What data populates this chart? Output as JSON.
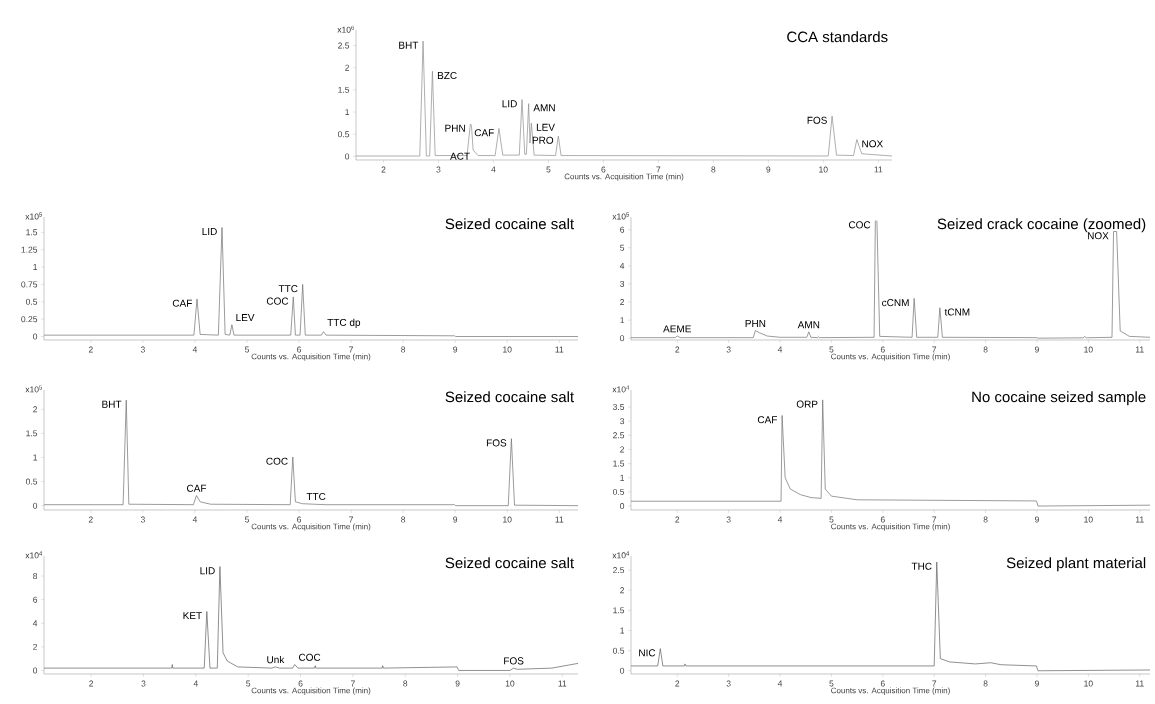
{
  "chart_data": [
    {
      "type": "line",
      "title": "CCA standards",
      "xlabel": "Counts vs. Acquisition Time (min)",
      "ylabel": "x10$^{6}$",
      "color": "#8c8c8c",
      "x": [
        1.5,
        2.66,
        2.72,
        2.78,
        2.84,
        2.89,
        2.94,
        3.52,
        3.58,
        3.6,
        3.63,
        3.66,
        3.72,
        4.03,
        4.1,
        4.17,
        4.47,
        4.52,
        4.57,
        4.6,
        4.64,
        4.665,
        4.69,
        4.74,
        5.13,
        5.18,
        5.23,
        10.09,
        10.16,
        10.24,
        10.55,
        10.61,
        10.7,
        11.25
      ],
      "values": [
        0.01,
        0.01,
        2.6,
        0.01,
        0.01,
        1.92,
        0.02,
        0.02,
        0.73,
        0.7,
        0.15,
        0.1,
        0.02,
        0.02,
        0.63,
        0.03,
        0.03,
        1.28,
        0.05,
        0.05,
        1.19,
        0.3,
        0.75,
        0.03,
        0.02,
        0.46,
        0.02,
        0.01,
        0.91,
        0.03,
        0.02,
        0.38,
        0.06,
        0.01
      ],
      "xlim": [
        1.5,
        11.25
      ],
      "ylim": [
        -0.08,
        2.85
      ],
      "xticks": [
        2,
        3,
        4,
        5,
        6,
        7,
        8,
        9,
        10,
        11
      ],
      "yticks": [
        0,
        0.5,
        1,
        1.5,
        2,
        2.5
      ],
      "annotations": [
        {
          "text": "BHT",
          "x": 2.72,
          "y": 2.6
        },
        {
          "text": "BZC",
          "x": 2.89,
          "y": 1.92
        },
        {
          "text": "PHN",
          "x": 3.58,
          "y": 0.73
        },
        {
          "text": "ACT",
          "x": 3.66,
          "y": 0.1
        },
        {
          "text": "CAF",
          "x": 4.1,
          "y": 0.63
        },
        {
          "text": "LID",
          "x": 4.52,
          "y": 1.28
        },
        {
          "text": "AMN",
          "x": 4.64,
          "y": 1.19
        },
        {
          "text": "LEV",
          "x": 4.69,
          "y": 0.75
        },
        {
          "text": "PRO",
          "x": 5.18,
          "y": 0.46
        },
        {
          "text": "FOS",
          "x": 10.16,
          "y": 0.91
        },
        {
          "text": "NOX",
          "x": 10.61,
          "y": 0.38
        }
      ]
    },
    {
      "type": "line",
      "title": "Seized cocaine salt",
      "xlabel": "Counts vs. Acquisition Time (min)",
      "ylabel": "x10$^{5}$",
      "color": "#707070",
      "x": [
        1.1,
        3.98,
        4.04,
        4.1,
        4.45,
        4.52,
        4.58,
        4.67,
        4.71,
        4.75,
        5.84,
        5.89,
        5.93,
        6.02,
        6.07,
        6.12,
        6.43,
        6.47,
        6.52,
        8.99,
        9.01,
        11.36
      ],
      "values": [
        0.02,
        0.02,
        0.54,
        0.03,
        0.02,
        1.57,
        0.03,
        0.02,
        0.17,
        0.02,
        0.02,
        0.57,
        0.02,
        0.02,
        0.75,
        0.02,
        0.02,
        0.07,
        0.02,
        0.01,
        0,
        0
      ],
      "xlim": [
        1.1,
        11.36
      ],
      "ylim": [
        -0.05,
        1.72
      ],
      "xticks": [
        2,
        3,
        4,
        5,
        6,
        7,
        8,
        9,
        10,
        11
      ],
      "yticks": [
        0,
        0.25,
        0.5,
        0.75,
        1,
        1.25,
        1.5
      ],
      "annotations": [
        {
          "text": "CAF",
          "x": 4.04,
          "y": 0.54
        },
        {
          "text": "LID",
          "x": 4.52,
          "y": 1.57
        },
        {
          "text": "LEV",
          "x": 4.71,
          "y": 0.17
        },
        {
          "text": "COC",
          "x": 5.89,
          "y": 0.57
        },
        {
          "text": "TTC",
          "x": 6.07,
          "y": 0.75
        },
        {
          "text": "TTC dp",
          "x": 6.47,
          "y": 0.07
        }
      ]
    },
    {
      "type": "line",
      "title": "Seized crack cocaine (zoomed)",
      "xlabel": "Counts vs. Acquisition Time (min)",
      "ylabel": "x10$^{5}$",
      "color": "#707070",
      "x": [
        1.1,
        1.96,
        2.0,
        2.06,
        3.48,
        3.52,
        3.6,
        3.75,
        4.0,
        4.52,
        4.56,
        4.6,
        4.73,
        4.75,
        4.77,
        5.83,
        5.855,
        5.87,
        5.885,
        5.94,
        6.57,
        6.61,
        6.66,
        7.07,
        7.11,
        7.16,
        8.99,
        9.02,
        9.9,
        9.93,
        9.96,
        10.46,
        10.49,
        10.55,
        10.62,
        10.8,
        11.2
      ],
      "values": [
        0.03,
        0.03,
        0.12,
        0.03,
        0.03,
        0.42,
        0.3,
        0.12,
        0.05,
        0.05,
        0.35,
        0.05,
        0.03,
        0.08,
        0.03,
        0.05,
        6.5,
        null,
        6.5,
        0.1,
        0.05,
        2.2,
        0.05,
        0.05,
        1.68,
        0.05,
        0.03,
        0.0,
        0.02,
        0.1,
        0.02,
        0.05,
        5.9,
        5.9,
        0.4,
        0.1,
        0.05
      ],
      "xlim": [
        1.1,
        11.2
      ],
      "ylim": [
        -0.1,
        6.7
      ],
      "xticks": [
        2,
        3,
        4,
        5,
        6,
        7,
        8,
        9,
        10,
        11
      ],
      "yticks": [
        0,
        1,
        2,
        3,
        4,
        5,
        6
      ],
      "annotations": [
        {
          "text": "AEME",
          "x": 2.0,
          "y": 0.12
        },
        {
          "text": "PHN",
          "x": 3.52,
          "y": 0.42
        },
        {
          "text": "AMN",
          "x": 4.56,
          "y": 0.35
        },
        {
          "text": "COC",
          "x": 5.855,
          "y": 6.5
        },
        {
          "text": "cCNM",
          "x": 6.61,
          "y": 2.2
        },
        {
          "text": "tCNM",
          "x": 7.11,
          "y": 1.68
        },
        {
          "text": "NOX",
          "x": 10.49,
          "y": 5.9
        }
      ]
    },
    {
      "type": "line",
      "title": "Seized cocaine salt",
      "xlabel": "Counts vs. Acquisition Time (min)",
      "ylabel": "x10$^{5}$",
      "color": "#707070",
      "x": [
        1.1,
        2.62,
        2.68,
        2.73,
        3.97,
        4.03,
        4.1,
        4.3,
        5.83,
        5.88,
        5.93,
        6.07,
        6.5,
        8.99,
        9.01,
        10.02,
        10.08,
        10.14,
        11.36
      ],
      "values": [
        0.02,
        0.02,
        2.19,
        0.03,
        0.02,
        0.21,
        0.08,
        0.03,
        0.02,
        1.01,
        0.08,
        0.04,
        0.02,
        0.02,
        0,
        0,
        1.39,
        0.01,
        0
      ],
      "xlim": [
        1.1,
        11.36
      ],
      "ylim": [
        -0.09,
        2.4
      ],
      "xticks": [
        2,
        3,
        4,
        5,
        6,
        7,
        8,
        9,
        10,
        11
      ],
      "yticks": [
        0,
        0.5,
        1,
        1.5,
        2
      ],
      "annotations": [
        {
          "text": "BHT",
          "x": 2.68,
          "y": 2.19
        },
        {
          "text": "CAF",
          "x": 4.03,
          "y": 0.21
        },
        {
          "text": "COC",
          "x": 5.88,
          "y": 1.01
        },
        {
          "text": "TTC",
          "x": 6.07,
          "y": 0.04
        },
        {
          "text": "FOS",
          "x": 10.08,
          "y": 1.39
        }
      ]
    },
    {
      "type": "line",
      "title": "No cocaine seized sample",
      "xlabel": "Counts vs. Acquisition Time (min)",
      "ylabel": "x10$^{4}$",
      "color": "#707070",
      "x": [
        1.1,
        4.02,
        4.04,
        4.1,
        4.2,
        4.4,
        4.6,
        4.8,
        4.83,
        4.88,
        5.0,
        5.5,
        8.99,
        9.02,
        11.2
      ],
      "values": [
        0.17,
        0.17,
        3.2,
        1.0,
        0.6,
        0.4,
        0.3,
        0.27,
        3.75,
        0.6,
        0.35,
        0.22,
        0.18,
        0.0,
        0.03
      ],
      "xlim": [
        1.1,
        11.2
      ],
      "ylim": [
        -0.14,
        4.1
      ],
      "xticks": [
        2,
        3,
        4,
        5,
        6,
        7,
        8,
        9,
        10,
        11
      ],
      "yticks": [
        0,
        0.5,
        1,
        1.5,
        2,
        2.5,
        3,
        3.5
      ],
      "annotations": [
        {
          "text": "CAF",
          "x": 4.04,
          "y": 3.2
        },
        {
          "text": "ORP",
          "x": 4.83,
          "y": 3.75
        }
      ]
    },
    {
      "type": "line",
      "title": "Seized cocaine salt",
      "xlabel": "Counts vs. Acquisition Time (min)",
      "ylabel": "x10$^{4}$",
      "color": "#606060",
      "x": [
        1.1,
        3.54,
        3.55,
        3.56,
        4.16,
        4.21,
        4.27,
        4.41,
        4.46,
        4.52,
        4.6,
        4.8,
        5.45,
        5.52,
        5.6,
        5.85,
        5.89,
        5.95,
        6.27,
        6.28,
        6.29,
        7.56,
        7.57,
        7.58,
        8.99,
        9.02,
        10.0,
        10.07,
        10.14,
        10.8,
        11.3
      ],
      "values": [
        0.2,
        0.2,
        0.5,
        0.2,
        0.2,
        5.0,
        0.2,
        0.2,
        8.8,
        1.5,
        0.8,
        0.3,
        0.2,
        0.3,
        0.2,
        0.2,
        0.5,
        0.2,
        0.2,
        0.4,
        0.2,
        0.2,
        0.4,
        0.2,
        0.3,
        0,
        0,
        0.2,
        0.1,
        0.2,
        0.6
      ],
      "xlim": [
        1.1,
        11.3
      ],
      "ylim": [
        -0.3,
        9.7
      ],
      "xticks": [
        2,
        3,
        4,
        5,
        6,
        7,
        8,
        9,
        10,
        11
      ],
      "yticks": [
        0,
        2,
        4,
        6,
        8
      ],
      "annotations": [
        {
          "text": "KET",
          "x": 4.21,
          "y": 5.0
        },
        {
          "text": "LID",
          "x": 4.46,
          "y": 8.8
        },
        {
          "text": "Unk",
          "x": 5.52,
          "y": 0.3
        },
        {
          "text": "COC",
          "x": 5.89,
          "y": 0.5
        },
        {
          "text": "FOS",
          "x": 10.07,
          "y": 0.2
        }
      ]
    },
    {
      "type": "line",
      "title": "Seized plant material",
      "xlabel": "Counts vs. Acquisition Time (min)",
      "ylabel": "x10$^{4}$",
      "color": "#606060",
      "x": [
        1.1,
        1.62,
        1.67,
        1.72,
        2.14,
        2.15,
        2.17,
        7.0,
        7.05,
        7.12,
        7.3,
        7.8,
        8.1,
        8.3,
        8.99,
        9.02,
        11.2
      ],
      "values": [
        0.12,
        0.12,
        0.55,
        0.12,
        0.12,
        0.17,
        0.12,
        0.12,
        2.7,
        0.3,
        0.22,
        0.17,
        0.2,
        0.15,
        0.12,
        0.0,
        0.02
      ],
      "xlim": [
        1.1,
        11.2
      ],
      "ylim": [
        -0.08,
        2.85
      ],
      "xticks": [
        2,
        3,
        4,
        5,
        6,
        7,
        8,
        9,
        10,
        11
      ],
      "yticks": [
        0,
        0.5,
        1,
        1.5,
        2,
        2.5
      ],
      "annotations": [
        {
          "text": "NIC",
          "x": 1.67,
          "y": 0.55
        },
        {
          "text": "THC",
          "x": 7.05,
          "y": 2.7
        }
      ]
    }
  ]
}
